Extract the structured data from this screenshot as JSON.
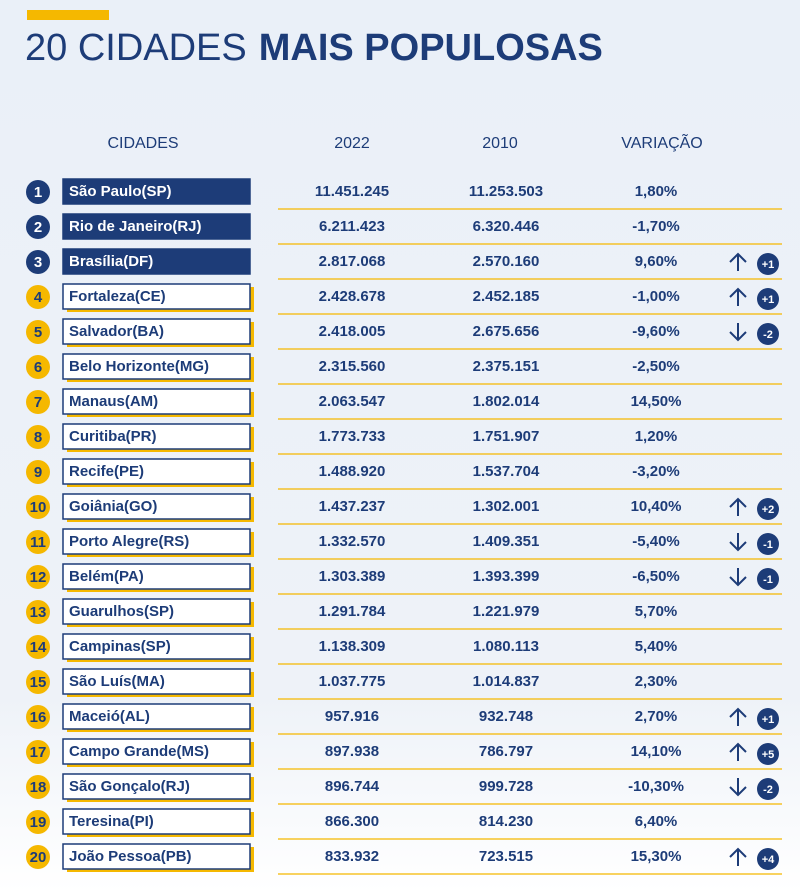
{
  "title": {
    "light": "20 CIDADES",
    "bold": "MAIS POPULOSAS"
  },
  "table": {
    "headers": [
      "CIDADES",
      "2022",
      "2010",
      "VARIAÇÃO"
    ],
    "rows": [
      {
        "rank": "1",
        "city": "São Paulo(SP)",
        "pop2022": "11.451.245",
        "pop2010": "11.253.503",
        "variation": "1,80%",
        "change": null
      },
      {
        "rank": "2",
        "city": "Rio de Janeiro(RJ)",
        "pop2022": "6.211.423",
        "pop2010": "6.320.446",
        "variation": "-1,70%",
        "change": null
      },
      {
        "rank": "3",
        "city": "Brasília(DF)",
        "pop2022": "2.817.068",
        "pop2010": "2.570.160",
        "variation": "9,60%",
        "change": "+1"
      },
      {
        "rank": "4",
        "city": "Fortaleza(CE)",
        "pop2022": "2.428.678",
        "pop2010": "2.452.185",
        "variation": "-1,00%",
        "change": "+1"
      },
      {
        "rank": "5",
        "city": "Salvador(BA)",
        "pop2022": "2.418.005",
        "pop2010": "2.675.656",
        "variation": "-9,60%",
        "change": "-2"
      },
      {
        "rank": "6",
        "city": "Belo Horizonte(MG)",
        "pop2022": "2.315.560",
        "pop2010": "2.375.151",
        "variation": "-2,50%",
        "change": null
      },
      {
        "rank": "7",
        "city": "Manaus(AM)",
        "pop2022": "2.063.547",
        "pop2010": "1.802.014",
        "variation": "14,50%",
        "change": null
      },
      {
        "rank": "8",
        "city": "Curitiba(PR)",
        "pop2022": "1.773.733",
        "pop2010": "1.751.907",
        "variation": "1,20%",
        "change": null
      },
      {
        "rank": "9",
        "city": "Recife(PE)",
        "pop2022": "1.488.920",
        "pop2010": "1.537.704",
        "variation": "-3,20%",
        "change": null
      },
      {
        "rank": "10",
        "city": "Goiânia(GO)",
        "pop2022": "1.437.237",
        "pop2010": "1.302.001",
        "variation": "10,40%",
        "change": "+2"
      },
      {
        "rank": "11",
        "city": "Porto Alegre(RS)",
        "pop2022": "1.332.570",
        "pop2010": "1.409.351",
        "variation": "-5,40%",
        "change": "-1"
      },
      {
        "rank": "12",
        "city": "Belém(PA)",
        "pop2022": "1.303.389",
        "pop2010": "1.393.399",
        "variation": "-6,50%",
        "change": "-1"
      },
      {
        "rank": "13",
        "city": "Guarulhos(SP)",
        "pop2022": "1.291.784",
        "pop2010": "1.221.979",
        "variation": "5,70%",
        "change": null
      },
      {
        "rank": "14",
        "city": "Campinas(SP)",
        "pop2022": "1.138.309",
        "pop2010": "1.080.113",
        "variation": "5,40%",
        "change": null
      },
      {
        "rank": "15",
        "city": "São Luís(MA)",
        "pop2022": "1.037.775",
        "pop2010": "1.014.837",
        "variation": "2,30%",
        "change": null
      },
      {
        "rank": "16",
        "city": "Maceió(AL)",
        "pop2022": "957.916",
        "pop2010": "932.748",
        "variation": "2,70%",
        "change": "+1"
      },
      {
        "rank": "17",
        "city": "Campo Grande(MS)",
        "pop2022": "897.938",
        "pop2010": "786.797",
        "variation": "14,10%",
        "change": "+5"
      },
      {
        "rank": "18",
        "city": "São Gonçalo(RJ)",
        "pop2022": "896.744",
        "pop2010": "999.728",
        "variation": "-10,30%",
        "change": "-2"
      },
      {
        "rank": "19",
        "city": "Teresina(PI)",
        "pop2022": "866.300",
        "pop2010": "814.230",
        "variation": "6,40%",
        "change": null
      },
      {
        "rank": "20",
        "city": "João Pessoa(PB)",
        "pop2022": "833.932",
        "pop2010": "723.515",
        "variation": "15,30%",
        "change": "+4"
      }
    ]
  }
}
